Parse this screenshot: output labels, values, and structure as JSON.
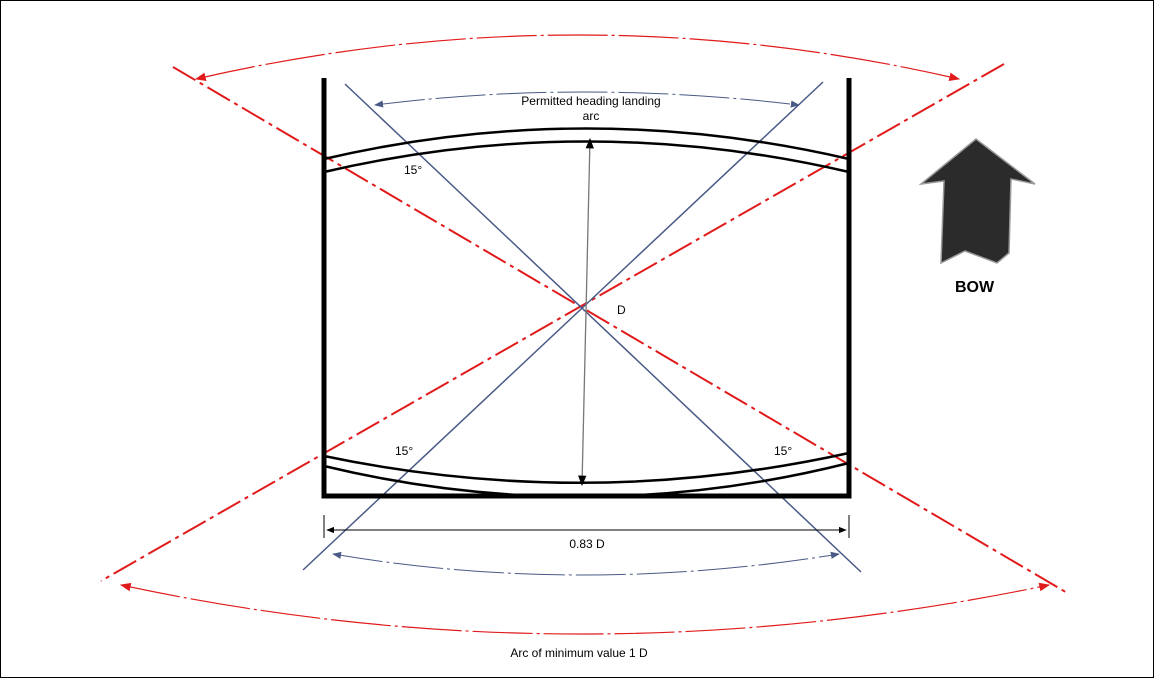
{
  "labels": {
    "permitted_line1": "Permitted heading landing",
    "permitted_line2": "arc",
    "d_center": "D",
    "angle_top_left": "15°",
    "angle_bottom_left": "15°",
    "angle_bottom_right": "15°",
    "width_dim": "0.83 D",
    "min_arc": "Arc of minimum value 1 D",
    "bow": "BOW"
  },
  "colors": {
    "frame": "#000000",
    "red": "#e11b1b",
    "blue": "#4a5a86",
    "gray": "#707070",
    "arrow_fill": "#2b2b2b"
  },
  "icons": {
    "bow_arrow": "bow-arrow-icon"
  }
}
